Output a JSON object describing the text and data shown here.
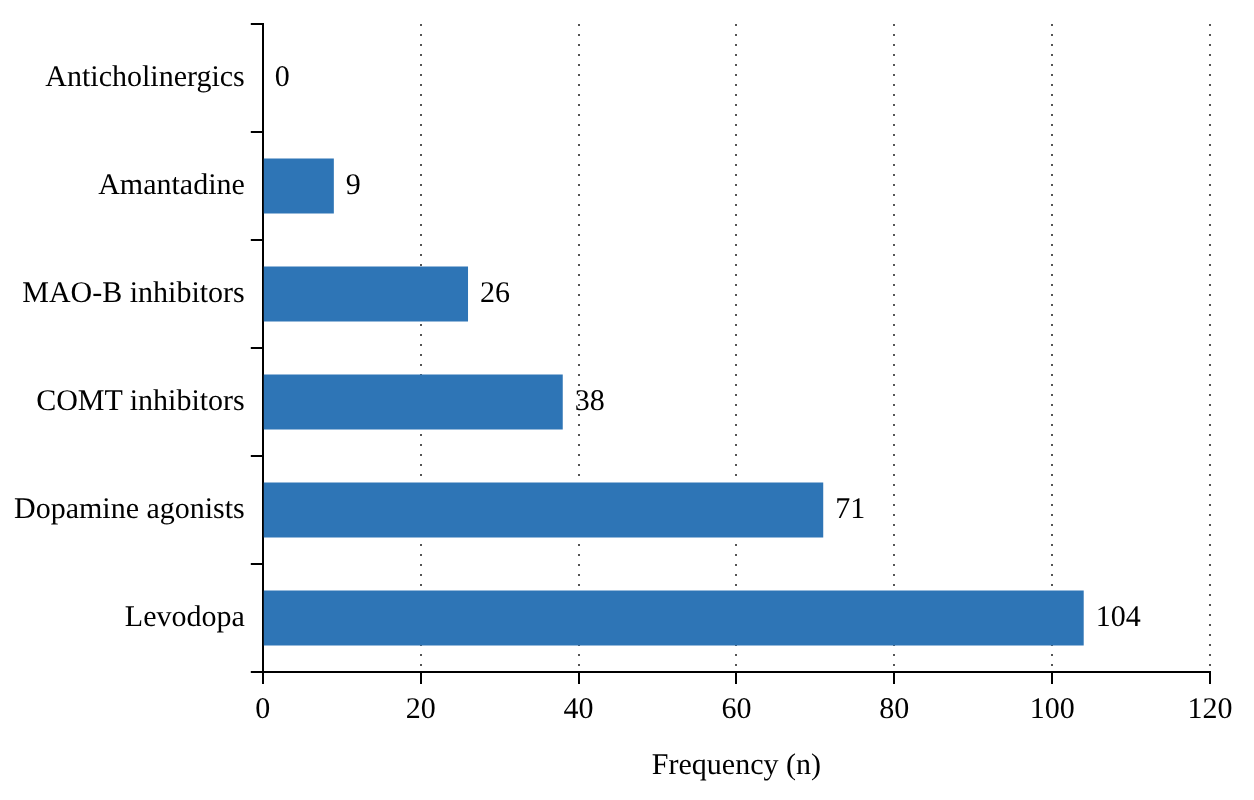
{
  "chart_data": {
    "type": "bar",
    "orientation": "horizontal",
    "xlabel": "Frequency (n)",
    "categories": [
      "Anticholinergics",
      "Amantadine",
      "MAO-B inhibitors",
      "COMT inhibitors",
      "Dopamine agonists",
      "Levodopa"
    ],
    "values": [
      0,
      9,
      26,
      38,
      71,
      104
    ],
    "color": "#2e75b6",
    "xlim": [
      0,
      120
    ],
    "xticks": [
      0,
      20,
      40,
      60,
      80,
      100,
      120
    ],
    "grid": "x",
    "data_labels": true
  }
}
